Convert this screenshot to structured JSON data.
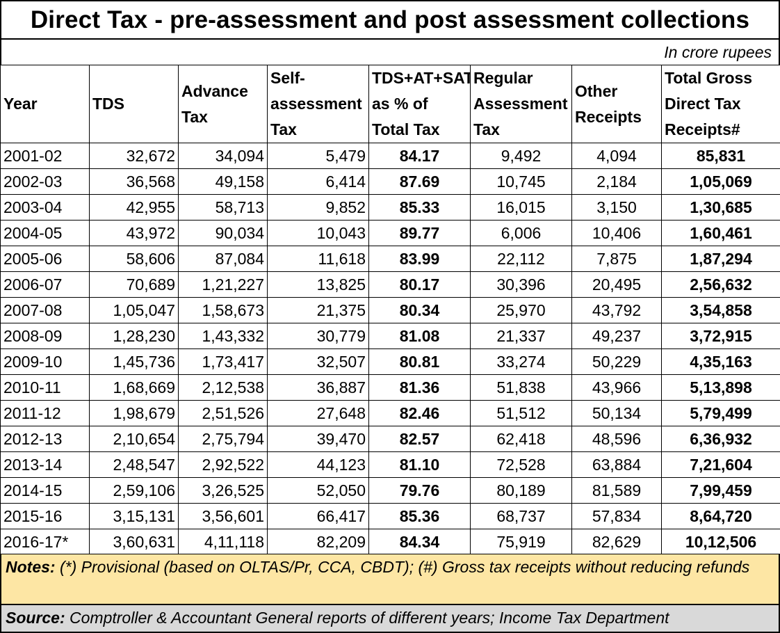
{
  "title": "Direct Tax - pre-assessment and post assessment collections",
  "unit_note": "In crore rupees",
  "headers": [
    "Year",
    "TDS",
    "Advance Tax",
    "Self-assessment Tax",
    "TDS+AT+SAT as % of Total Tax",
    "Regular Assessment Tax",
    "Other Receipts",
    "Total Gross Direct Tax Receipts#"
  ],
  "rows": [
    [
      "2001-02",
      "32,672",
      "34,094",
      "5,479",
      "84.17",
      "9,492",
      "4,094",
      "85,831"
    ],
    [
      "2002-03",
      "36,568",
      "49,158",
      "6,414",
      "87.69",
      "10,745",
      "2,184",
      "1,05,069"
    ],
    [
      "2003-04",
      "42,955",
      "58,713",
      "9,852",
      "85.33",
      "16,015",
      "3,150",
      "1,30,685"
    ],
    [
      "2004-05",
      "43,972",
      "90,034",
      "10,043",
      "89.77",
      "6,006",
      "10,406",
      "1,60,461"
    ],
    [
      "2005-06",
      "58,606",
      "87,084",
      "11,618",
      "83.99",
      "22,112",
      "7,875",
      "1,87,294"
    ],
    [
      "2006-07",
      "70,689",
      "1,21,227",
      "13,825",
      "80.17",
      "30,396",
      "20,495",
      "2,56,632"
    ],
    [
      "2007-08",
      "1,05,047",
      "1,58,673",
      "21,375",
      "80.34",
      "25,970",
      "43,792",
      "3,54,858"
    ],
    [
      "2008-09",
      "1,28,230",
      "1,43,332",
      "30,779",
      "81.08",
      "21,337",
      "49,237",
      "3,72,915"
    ],
    [
      "2009-10",
      "1,45,736",
      "1,73,417",
      "32,507",
      "80.81",
      "33,274",
      "50,229",
      "4,35,163"
    ],
    [
      "2010-11",
      "1,68,669",
      "2,12,538",
      "36,887",
      "81.36",
      "51,838",
      "43,966",
      "5,13,898"
    ],
    [
      "2011-12",
      "1,98,679",
      "2,51,526",
      "27,648",
      "82.46",
      "51,512",
      "50,134",
      "5,79,499"
    ],
    [
      "2012-13",
      "2,10,654",
      "2,75,794",
      "39,470",
      "82.57",
      "62,418",
      "48,596",
      "6,36,932"
    ],
    [
      "2013-14",
      "2,48,547",
      "2,92,522",
      "44,123",
      "81.10",
      "72,528",
      "63,884",
      "7,21,604"
    ],
    [
      "2014-15",
      "2,59,106",
      "3,26,525",
      "52,050",
      "79.76",
      "80,189",
      "81,589",
      "7,99,459"
    ],
    [
      "2015-16",
      "3,15,131",
      "3,56,601",
      "66,417",
      "85.36",
      "68,737",
      "57,834",
      "8,64,720"
    ],
    [
      "2016-17*",
      "3,60,631",
      "4,11,118",
      "82,209",
      "84.34",
      "75,919",
      "82,629",
      "10,12,506"
    ]
  ],
  "notes": {
    "label": "Notes:",
    "text": "(*) Provisional (based on OLTAS/Pr, CCA, CBDT); (#) Gross tax receipts without reducing refunds",
    "bg_color": "#fde6a4"
  },
  "source": {
    "label": "Source:",
    "text": "Comptroller & Accountant General reports of different years; Income Tax Department",
    "bg_color": "#d9d9d9"
  }
}
